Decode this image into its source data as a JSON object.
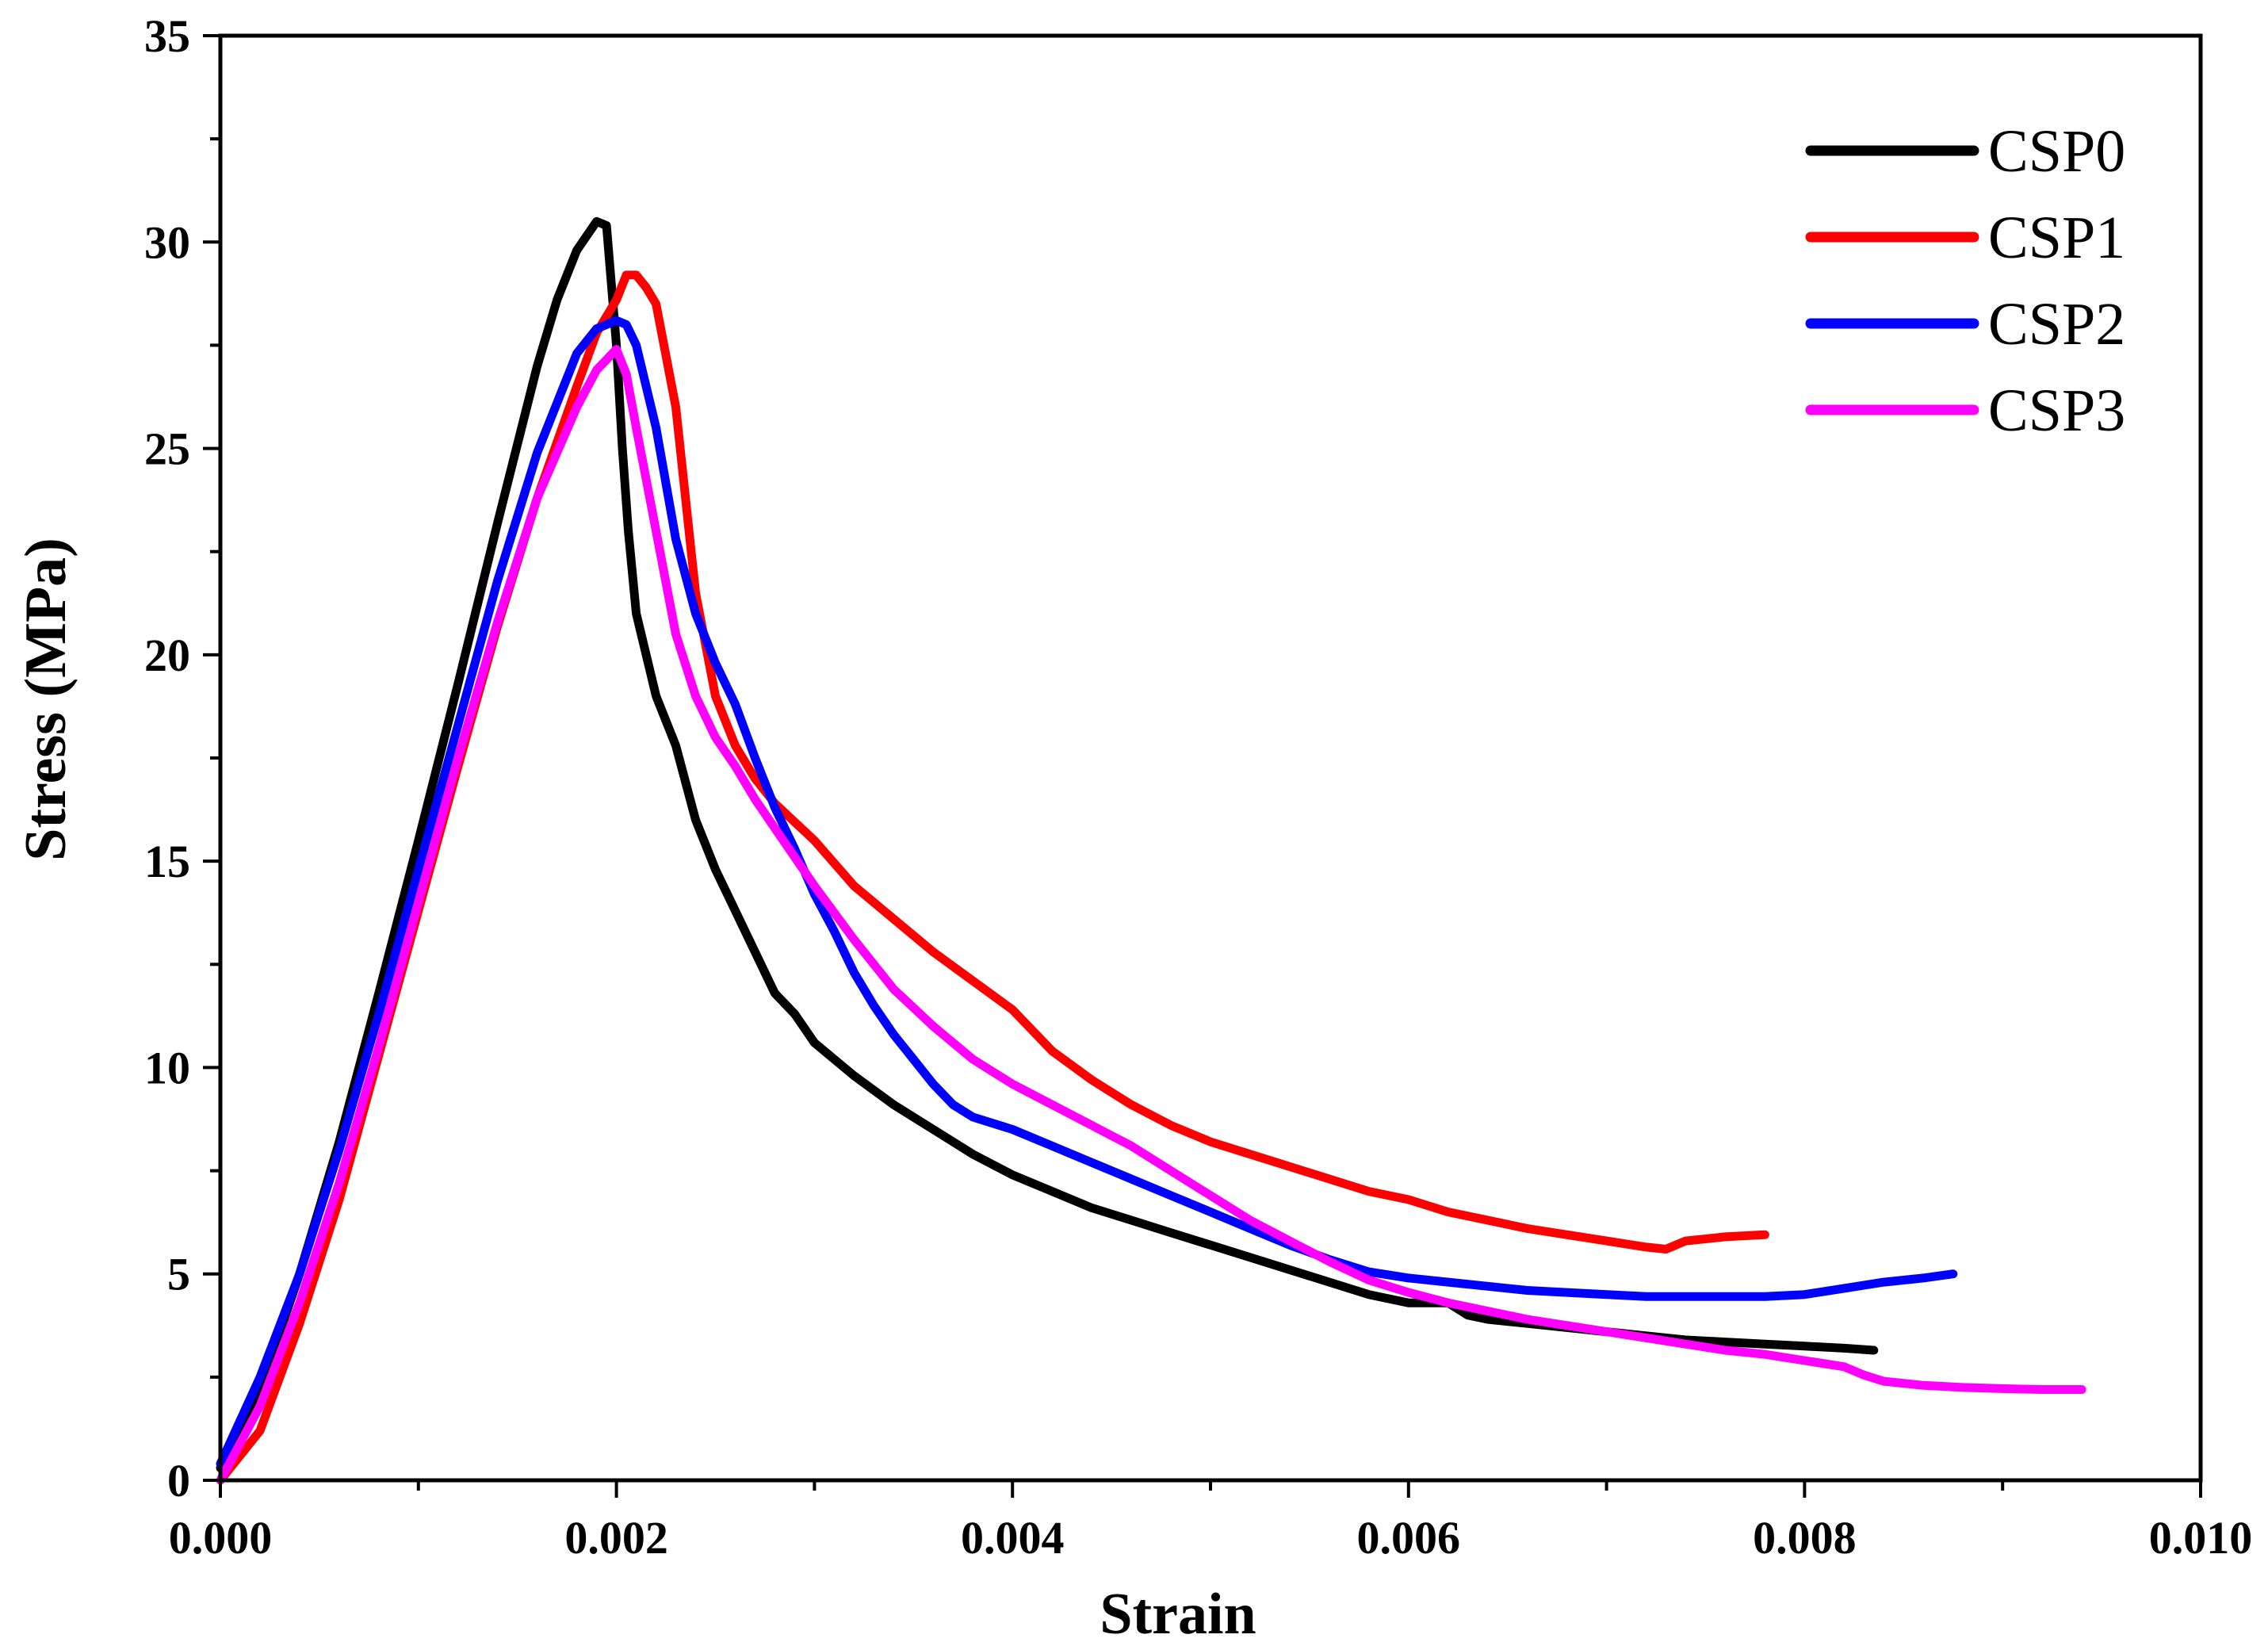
{
  "chart_data": {
    "type": "line",
    "title": "",
    "xlabel": "Strain",
    "ylabel": "Stress (MPa)",
    "xlim": [
      0,
      0.01
    ],
    "ylim": [
      0,
      35
    ],
    "x_ticks": [
      0.0,
      0.002,
      0.004,
      0.006,
      0.008,
      0.01
    ],
    "x_tick_labels": [
      "0.000",
      "0.002",
      "0.004",
      "0.006",
      "0.008",
      "0.010"
    ],
    "y_ticks": [
      0,
      5,
      10,
      15,
      20,
      25,
      30,
      35
    ],
    "y_tick_labels": [
      "0",
      "5",
      "10",
      "15",
      "20",
      "25",
      "30",
      "35"
    ],
    "grid": false,
    "legend_position": "top-right",
    "series": [
      {
        "name": "CSP0",
        "color": "#000000",
        "x": [
          0.0,
          0.0002,
          0.0004,
          0.0006,
          0.0008,
          0.001,
          0.0012,
          0.0014,
          0.0016,
          0.0017,
          0.0018,
          0.0019,
          0.00195,
          0.002,
          0.00203,
          0.00206,
          0.0021,
          0.0022,
          0.0023,
          0.0024,
          0.0025,
          0.0026,
          0.0027,
          0.0028,
          0.0029,
          0.003,
          0.0032,
          0.0034,
          0.0036,
          0.0038,
          0.004,
          0.0042,
          0.0044,
          0.0046,
          0.0048,
          0.005,
          0.0052,
          0.0054,
          0.0056,
          0.0058,
          0.006,
          0.0062,
          0.0063,
          0.0064,
          0.0066,
          0.0068,
          0.007,
          0.0072,
          0.0074,
          0.0076,
          0.0078,
          0.008,
          0.0082,
          0.00835
        ],
        "y": [
          0.3,
          2.2,
          5.0,
          8.2,
          11.8,
          15.5,
          19.3,
          23.2,
          27.0,
          28.6,
          29.8,
          30.5,
          30.4,
          27.5,
          25.0,
          23.0,
          21.0,
          19.0,
          17.8,
          16.0,
          14.8,
          13.8,
          12.8,
          11.8,
          11.3,
          10.6,
          9.8,
          9.1,
          8.5,
          7.9,
          7.4,
          7.0,
          6.6,
          6.3,
          6.0,
          5.7,
          5.4,
          5.1,
          4.8,
          4.5,
          4.3,
          4.3,
          4.0,
          3.9,
          3.8,
          3.7,
          3.6,
          3.5,
          3.4,
          3.35,
          3.3,
          3.25,
          3.2,
          3.15
        ]
      },
      {
        "name": "CSP1",
        "color": "#ff0000",
        "x": [
          0.0,
          0.0002,
          0.0004,
          0.0006,
          0.0008,
          0.001,
          0.0012,
          0.0014,
          0.0016,
          0.0018,
          0.0019,
          0.002,
          0.00205,
          0.0021,
          0.00215,
          0.0022,
          0.0023,
          0.0024,
          0.0025,
          0.0026,
          0.0027,
          0.0028,
          0.003,
          0.0032,
          0.0034,
          0.0036,
          0.0038,
          0.004,
          0.0042,
          0.0044,
          0.0046,
          0.0048,
          0.005,
          0.0052,
          0.0054,
          0.0056,
          0.0058,
          0.006,
          0.0062,
          0.0064,
          0.0066,
          0.0068,
          0.007,
          0.0072,
          0.0073,
          0.0074,
          0.0076,
          0.0078
        ],
        "y": [
          0.0,
          1.2,
          3.8,
          6.8,
          10.3,
          13.8,
          17.3,
          20.7,
          23.8,
          26.5,
          27.8,
          28.6,
          29.2,
          29.2,
          28.9,
          28.5,
          26.0,
          21.5,
          19.0,
          17.8,
          17.0,
          16.4,
          15.5,
          14.4,
          13.6,
          12.8,
          12.1,
          11.4,
          10.4,
          9.7,
          9.1,
          8.6,
          8.2,
          7.9,
          7.6,
          7.3,
          7.0,
          6.8,
          6.5,
          6.3,
          6.1,
          5.95,
          5.8,
          5.65,
          5.6,
          5.8,
          5.9,
          5.95
        ]
      },
      {
        "name": "CSP2",
        "color": "#0000ff",
        "x": [
          0.0,
          0.0002,
          0.0004,
          0.0006,
          0.0008,
          0.001,
          0.0012,
          0.0014,
          0.0016,
          0.0018,
          0.0019,
          0.002,
          0.00205,
          0.0021,
          0.0022,
          0.0023,
          0.0024,
          0.0025,
          0.0026,
          0.0027,
          0.0028,
          0.0029,
          0.003,
          0.0031,
          0.0032,
          0.0033,
          0.0034,
          0.0035,
          0.0036,
          0.0037,
          0.0038,
          0.004,
          0.0042,
          0.0044,
          0.0046,
          0.0048,
          0.005,
          0.0052,
          0.0054,
          0.0056,
          0.0058,
          0.006,
          0.0062,
          0.0064,
          0.0066,
          0.0068,
          0.007,
          0.0072,
          0.0074,
          0.0076,
          0.0078,
          0.008,
          0.0082,
          0.0084,
          0.0086,
          0.00875
        ],
        "y": [
          0.4,
          2.5,
          5.0,
          8.0,
          11.3,
          14.8,
          18.3,
          21.8,
          24.9,
          27.3,
          27.9,
          28.1,
          28.0,
          27.5,
          25.5,
          22.8,
          21.0,
          19.8,
          18.8,
          17.5,
          16.3,
          15.3,
          14.2,
          13.3,
          12.3,
          11.5,
          10.8,
          10.2,
          9.6,
          9.1,
          8.8,
          8.5,
          8.1,
          7.7,
          7.3,
          6.9,
          6.5,
          6.1,
          5.7,
          5.35,
          5.05,
          4.9,
          4.8,
          4.7,
          4.6,
          4.55,
          4.5,
          4.45,
          4.45,
          4.45,
          4.45,
          4.5,
          4.65,
          4.8,
          4.9,
          5.0
        ]
      },
      {
        "name": "CSP3",
        "color": "#ff00ff",
        "x": [
          0.0,
          0.0002,
          0.0004,
          0.0006,
          0.0008,
          0.001,
          0.0012,
          0.0014,
          0.0016,
          0.0018,
          0.0019,
          0.002,
          0.00205,
          0.0021,
          0.0022,
          0.0023,
          0.0024,
          0.0025,
          0.0026,
          0.0027,
          0.0028,
          0.0029,
          0.003,
          0.0032,
          0.0034,
          0.0036,
          0.0038,
          0.004,
          0.0042,
          0.0044,
          0.0046,
          0.0048,
          0.005,
          0.0052,
          0.0054,
          0.0056,
          0.0058,
          0.006,
          0.0062,
          0.0064,
          0.0066,
          0.0068,
          0.007,
          0.0072,
          0.0074,
          0.0076,
          0.0078,
          0.008,
          0.0082,
          0.0083,
          0.0084,
          0.0086,
          0.0088,
          0.009,
          0.0092,
          0.0094
        ],
        "y": [
          0.0,
          1.8,
          4.3,
          7.2,
          10.5,
          14.0,
          17.5,
          20.8,
          23.8,
          26.0,
          26.9,
          27.4,
          26.8,
          25.5,
          23.0,
          20.5,
          19.0,
          18.0,
          17.3,
          16.5,
          15.8,
          15.1,
          14.4,
          13.1,
          11.9,
          11.0,
          10.2,
          9.6,
          9.1,
          8.6,
          8.1,
          7.5,
          6.9,
          6.3,
          5.8,
          5.3,
          4.85,
          4.55,
          4.3,
          4.1,
          3.9,
          3.75,
          3.6,
          3.45,
          3.3,
          3.15,
          3.05,
          2.9,
          2.75,
          2.55,
          2.4,
          2.3,
          2.25,
          2.22,
          2.2,
          2.2
        ]
      }
    ]
  }
}
